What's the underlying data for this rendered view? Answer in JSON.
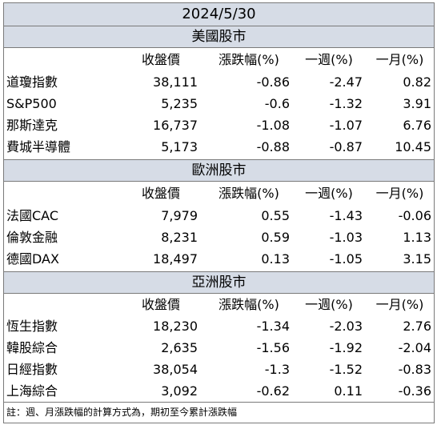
{
  "date": "2024/5/30",
  "columns": [
    "收盤價",
    "漲跌幅(%)",
    "一週(%)",
    "一月(%)"
  ],
  "regions": [
    {
      "title": "美國股市",
      "rows": [
        {
          "name": "道瓊指數",
          "close": "38,111",
          "change": "-0.86",
          "week": "-2.47",
          "month": "0.82"
        },
        {
          "name": "S&P500",
          "close": "5,235",
          "change": "-0.6",
          "week": "-1.32",
          "month": "3.91"
        },
        {
          "name": "那斯達克",
          "close": "16,737",
          "change": "-1.08",
          "week": "-1.07",
          "month": "6.76"
        },
        {
          "name": "費城半導體",
          "close": "5,173",
          "change": "-0.88",
          "week": "-0.87",
          "month": "10.45"
        }
      ]
    },
    {
      "title": "歐洲股市",
      "rows": [
        {
          "name": "法國CAC",
          "close": "7,979",
          "change": "0.55",
          "week": "-1.43",
          "month": "-0.06"
        },
        {
          "name": "倫敦金融",
          "close": "8,231",
          "change": "0.59",
          "week": "-1.03",
          "month": "1.13"
        },
        {
          "name": "德國DAX",
          "close": "18,497",
          "change": "0.13",
          "week": "-1.05",
          "month": "3.15"
        }
      ]
    },
    {
      "title": "亞洲股市",
      "rows": [
        {
          "name": "恆生指數",
          "close": "18,230",
          "change": "-1.34",
          "week": "-2.03",
          "month": "2.76"
        },
        {
          "name": "韓股綜合",
          "close": "2,635",
          "change": "-1.56",
          "week": "-1.92",
          "month": "-2.04"
        },
        {
          "name": "日經指數",
          "close": "38,054",
          "change": "-1.3",
          "week": "-1.52",
          "month": "-0.83"
        },
        {
          "name": "上海綜合",
          "close": "3,092",
          "change": "-0.62",
          "week": "0.11",
          "month": "-0.36"
        }
      ]
    }
  ],
  "note": "註：週、月漲跌幅的計算方式為，期初至今累計漲跌幅"
}
